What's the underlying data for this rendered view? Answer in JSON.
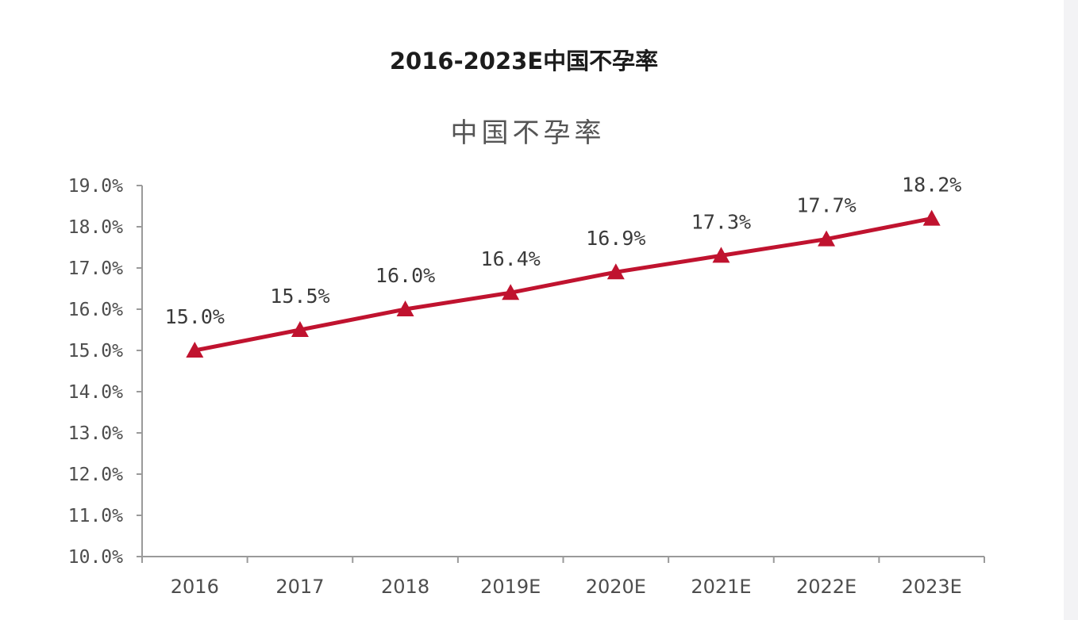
{
  "header": {
    "title": "2016-2023E中国不孕率"
  },
  "colors": {
    "series": "#c0132f",
    "axis": "#9a9a9a",
    "text": "#4d4d4d"
  },
  "chart_data": {
    "type": "line",
    "title": "中国不孕率",
    "xlabel": "",
    "ylabel": "",
    "categories": [
      "2016",
      "2017",
      "2018",
      "2019E",
      "2020E",
      "2021E",
      "2022E",
      "2023E"
    ],
    "series": [
      {
        "values": [
          15.0,
          15.5,
          16.0,
          16.4,
          16.9,
          17.3,
          17.7,
          18.2
        ],
        "labels": [
          "15.0%",
          "15.5%",
          "16.0%",
          "16.4%",
          "16.9%",
          "17.3%",
          "17.7%",
          "18.2%"
        ],
        "marker": "triangle"
      }
    ],
    "ylim": [
      10,
      19
    ],
    "yticks": [
      "10.0%",
      "11.0%",
      "12.0%",
      "13.0%",
      "14.0%",
      "15.0%",
      "16.0%",
      "17.0%",
      "18.0%",
      "19.0%"
    ],
    "grid": false,
    "legend": "none"
  }
}
